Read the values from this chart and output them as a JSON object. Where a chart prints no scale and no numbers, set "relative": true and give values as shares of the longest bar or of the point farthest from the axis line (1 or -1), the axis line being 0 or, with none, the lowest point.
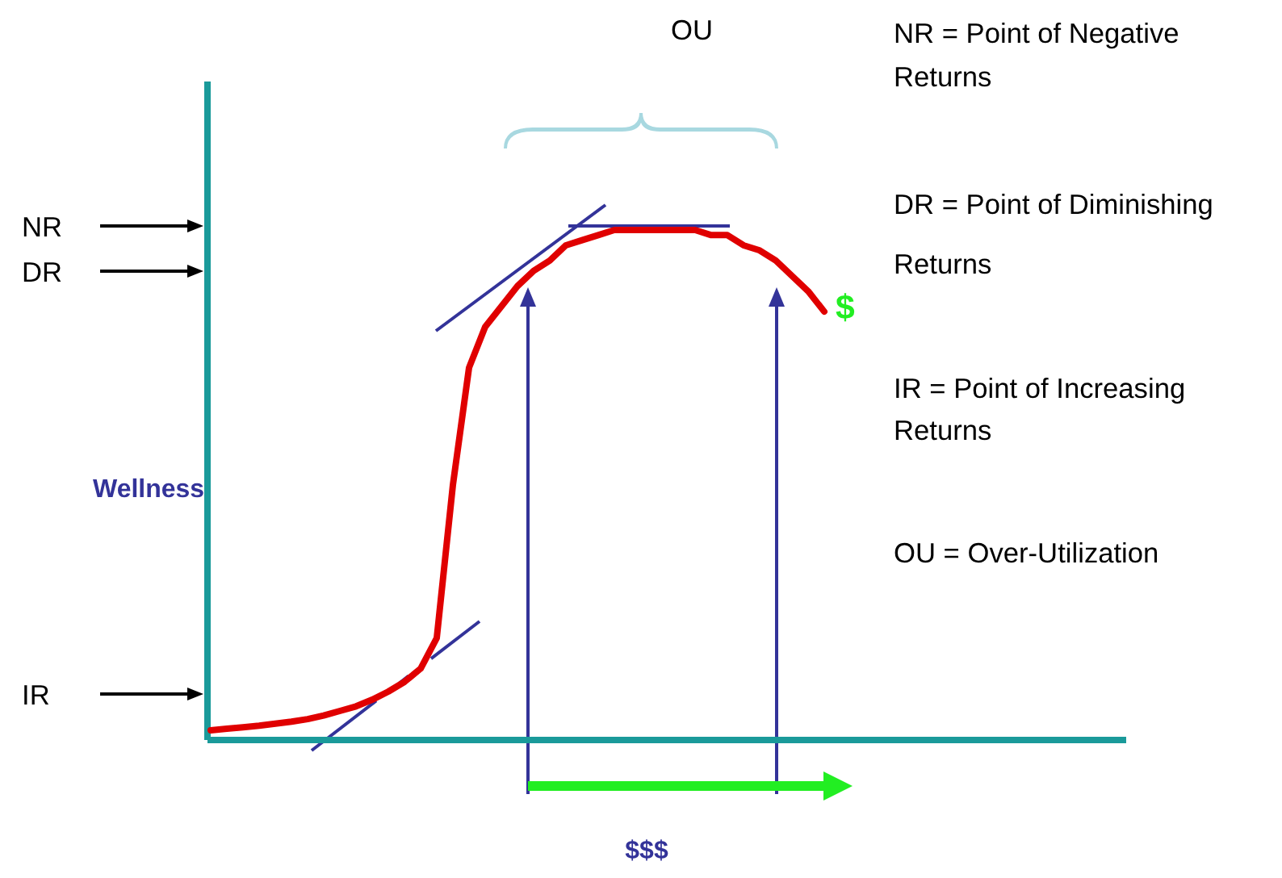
{
  "chart_data": {
    "type": "line",
    "relative": true,
    "categories": [
      null,
      null,
      null,
      null,
      null,
      null,
      null,
      null,
      null,
      null,
      null,
      null,
      null,
      null,
      null,
      null,
      null,
      null,
      null,
      null,
      null,
      null,
      null,
      null,
      null,
      null,
      null,
      null,
      null,
      null,
      null,
      null,
      null,
      null,
      null,
      null,
      null,
      null,
      null
    ],
    "series": [
      {
        "color": "#e00000",
        "values": [
          0.019,
          0.022,
          0.025,
          0.028,
          0.032,
          0.036,
          0.041,
          0.048,
          0.057,
          0.066,
          0.079,
          0.095,
          0.114,
          0.14,
          0.2,
          0.5,
          0.73,
          0.81,
          0.85,
          0.89,
          0.92,
          0.94,
          0.97,
          0.98,
          0.99,
          1.0,
          1.0,
          1.0,
          1.0,
          1.0,
          1.0,
          0.99,
          0.99,
          0.97,
          0.96,
          0.94,
          0.91,
          0.88,
          0.84
        ]
      }
    ],
    "xlabel": "$$$",
    "ylabel": "Wellness",
    "annotations": [
      "NR",
      "DR",
      "IR",
      "$",
      "OU",
      "NR = Point of Negative Returns",
      "DR = Point of Diminishing Returns",
      "IR = Point of Increasing Returns",
      "OU = Over-Utilization"
    ]
  }
}
